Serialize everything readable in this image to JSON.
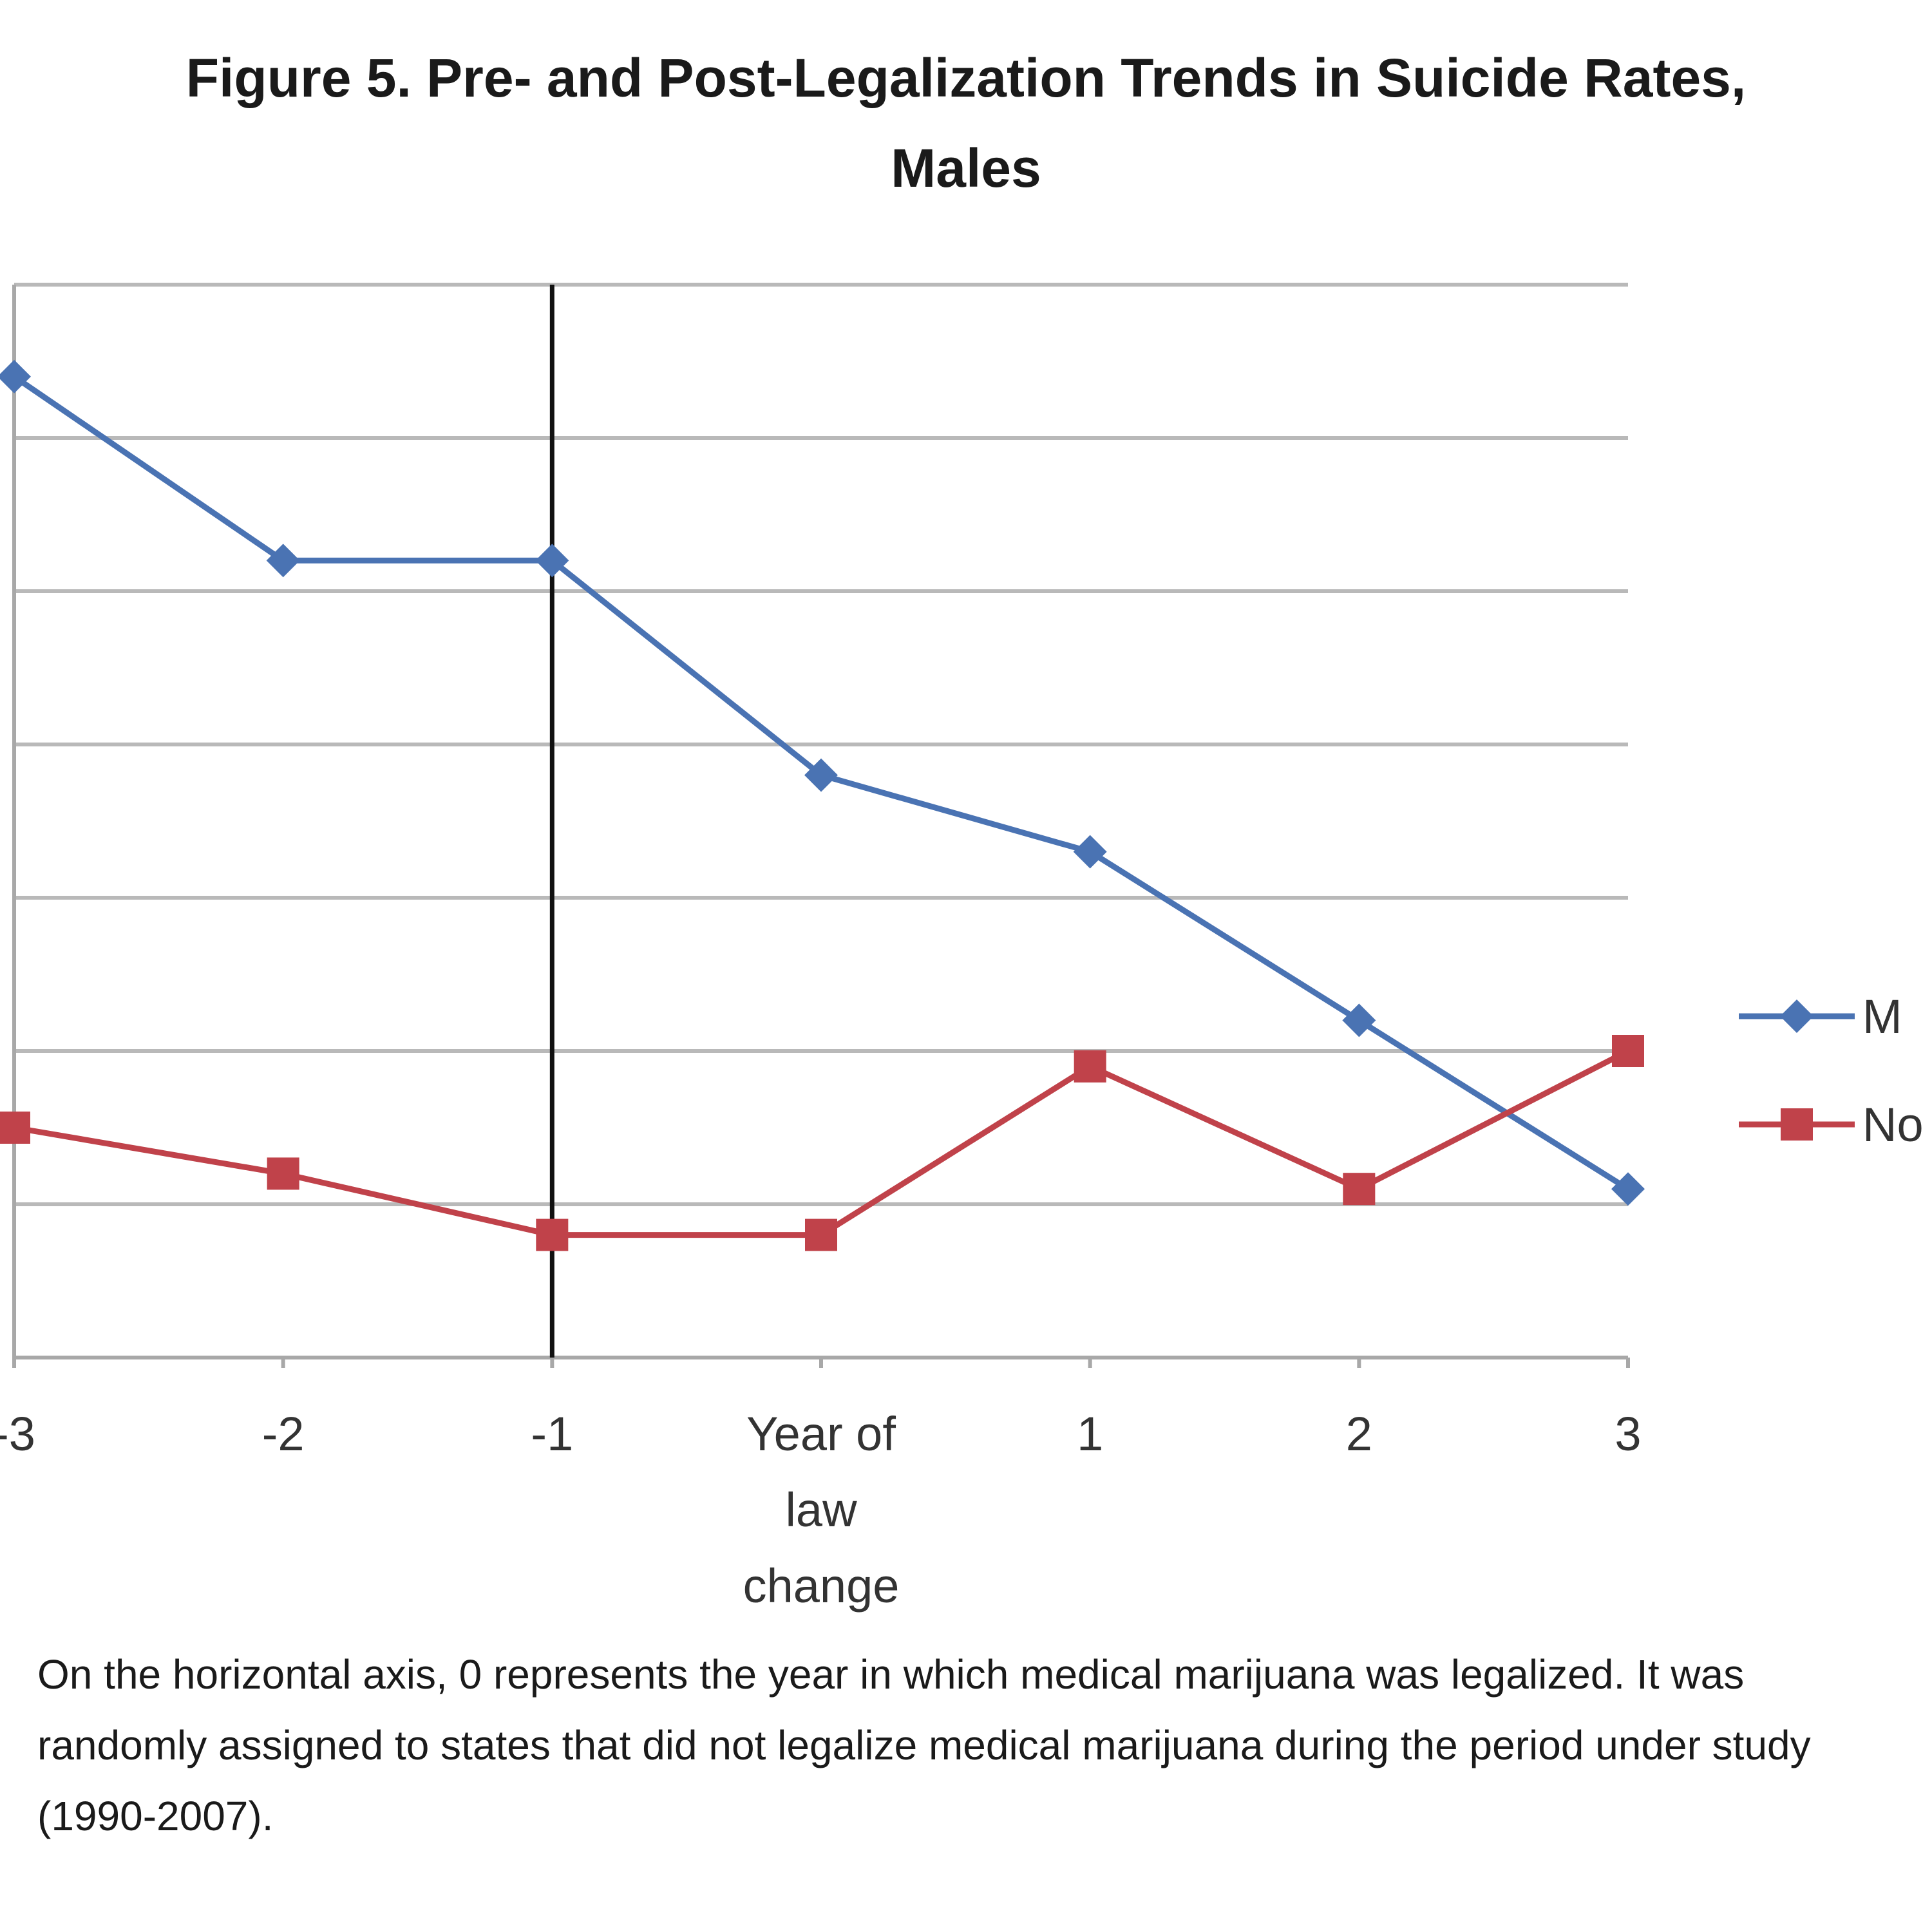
{
  "chart_data": {
    "type": "line",
    "title_lines": [
      "Figure 5. Pre- and Post-Legalization Trends in Suicide Rates,",
      "Males"
    ],
    "xlabel": "",
    "ylabel": "",
    "categories": [
      "-3",
      "-2",
      "-1",
      "Year of law change",
      "1",
      "2",
      "3"
    ],
    "category_label_lines": [
      [
        "-3"
      ],
      [
        "-2"
      ],
      [
        "-1"
      ],
      [
        "Year of",
        "law",
        "change"
      ],
      [
        "1"
      ],
      [
        "2"
      ],
      [
        "3"
      ]
    ],
    "x": [
      -3,
      -2,
      -1,
      0,
      1,
      2,
      3
    ],
    "ylim": [
      0,
      7
    ],
    "y_tick_count": 7,
    "y_tick_labels_visible": false,
    "grid": true,
    "reference_line_x": -1,
    "legend_position": "right",
    "series": [
      {
        "name": "M",
        "color": "#4a73b3",
        "marker": "diamond",
        "values": [
          6.4,
          5.2,
          5.2,
          3.8,
          3.3,
          2.2,
          1.1
        ]
      },
      {
        "name": "No",
        "color": "#c0424a",
        "marker": "square",
        "values": [
          1.5,
          1.2,
          0.8,
          0.8,
          1.9,
          1.1,
          2.0
        ]
      }
    ]
  },
  "caption": "On the horizontal axis, 0 represents the year in which medical marijuana was legalized.  It was randomly assigned to states that did not legalize medical marijuana during the period under study (1990-2007)."
}
